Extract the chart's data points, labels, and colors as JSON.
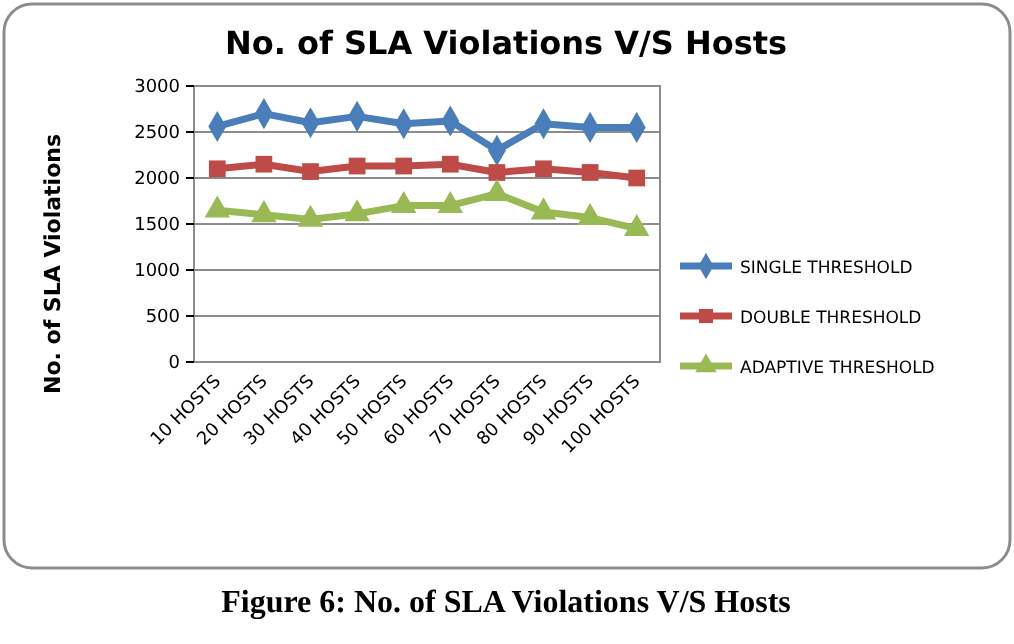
{
  "chart_data": {
    "type": "line",
    "title": "No. of SLA Violations  V/S Hosts",
    "ylabel": "No. of  SLA Violations",
    "categories": [
      "10 HOSTS",
      "20 HOSTS",
      "30 HOSTS",
      "40 HOSTS",
      "50 HOSTS",
      "60 HOSTS",
      "70 HOSTS",
      "80 HOSTS",
      "90 HOSTS",
      "100 HOSTS"
    ],
    "series": [
      {
        "name": "SINGLE THRESHOLD",
        "color": "#4a7ebb",
        "marker": "diamond",
        "values": [
          2560,
          2700,
          2600,
          2670,
          2590,
          2620,
          2300,
          2590,
          2550,
          2550
        ]
      },
      {
        "name": "DOUBLE THRESHOLD",
        "color": "#be4b48",
        "marker": "square",
        "values": [
          2100,
          2150,
          2070,
          2130,
          2130,
          2150,
          2060,
          2100,
          2060,
          2000
        ]
      },
      {
        "name": "ADAPTIVE THRESHOLD",
        "color": "#98b954",
        "marker": "triangle",
        "values": [
          1650,
          1600,
          1550,
          1610,
          1700,
          1700,
          1830,
          1630,
          1570,
          1450
        ]
      }
    ],
    "ylim": [
      0,
      3000
    ],
    "yticks": [
      0,
      500,
      1000,
      1500,
      2000,
      2500,
      3000
    ],
    "grid": "y",
    "legend": "right",
    "annotations": [
      "Figure 6: No. of SLA Violations V/S Hosts"
    ]
  }
}
